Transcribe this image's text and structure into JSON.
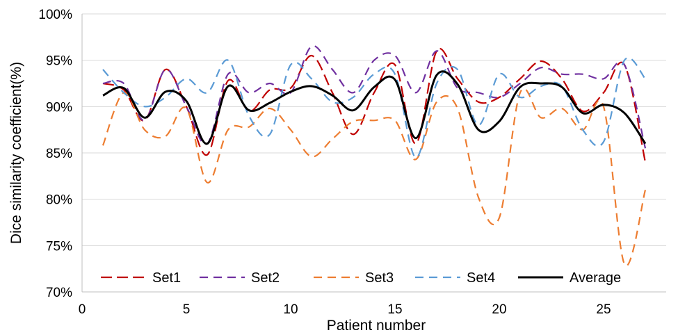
{
  "chart_data": {
    "type": "line",
    "title": "",
    "xlabel": "Patient number",
    "ylabel": "Dice similarity coefficient(%)",
    "xlim": [
      0,
      28
    ],
    "ylim": [
      70,
      100
    ],
    "x_ticks": [
      0,
      5,
      10,
      15,
      20,
      25
    ],
    "y_ticks": [
      70,
      75,
      80,
      85,
      90,
      95,
      100
    ],
    "y_tick_labels": [
      "70%",
      "75%",
      "80%",
      "85%",
      "90%",
      "95%",
      "100%"
    ],
    "grid": "horizontal",
    "legend_position": "bottom",
    "x": [
      1,
      2,
      3,
      4,
      5,
      6,
      7,
      8,
      9,
      10,
      11,
      12,
      13,
      14,
      15,
      16,
      17,
      18,
      19,
      20,
      21,
      22,
      23,
      24,
      25,
      26,
      27
    ],
    "series": [
      {
        "name": "Set1",
        "color": "#c00000",
        "dash": "long-dash",
        "values": [
          92.5,
          91.8,
          88.5,
          94.0,
          90.0,
          84.8,
          92.8,
          89.5,
          91.8,
          92.0,
          95.5,
          91.5,
          87.0,
          91.5,
          94.5,
          86.0,
          96.0,
          93.0,
          90.5,
          91.0,
          93.0,
          94.9,
          93.0,
          89.5,
          91.5,
          94.5,
          84.0
        ]
      },
      {
        "name": "Set2",
        "color": "#7030a0",
        "dash": "dash",
        "values": [
          92.5,
          92.5,
          88.5,
          94.0,
          90.0,
          86.0,
          93.5,
          91.5,
          92.5,
          91.5,
          96.5,
          94.0,
          91.5,
          95.0,
          95.5,
          91.5,
          96.0,
          92.0,
          91.5,
          91.0,
          92.5,
          94.2,
          93.5,
          93.5,
          93.0,
          94.5,
          85.5
        ]
      },
      {
        "name": "Set3",
        "color": "#ed7d31",
        "dash": "dash",
        "values": [
          85.8,
          91.5,
          87.5,
          86.8,
          89.8,
          81.8,
          87.5,
          87.8,
          89.8,
          87.5,
          84.6,
          86.5,
          88.4,
          88.5,
          88.5,
          84.3,
          90.5,
          89.8,
          80.2,
          78.0,
          91.5,
          88.8,
          89.8,
          87.5,
          90.0,
          73.0,
          81.0
        ]
      },
      {
        "name": "Set4",
        "color": "#5b9bd5",
        "dash": "dash",
        "values": [
          94.0,
          91.5,
          90.0,
          91.0,
          93.0,
          91.5,
          95.0,
          89.0,
          87.0,
          94.5,
          93.0,
          90.5,
          91.0,
          93.5,
          93.5,
          84.5,
          92.5,
          94.0,
          88.0,
          93.5,
          91.0,
          92.2,
          92.2,
          87.5,
          86.2,
          95.0,
          93.0
        ]
      },
      {
        "name": "Average",
        "color": "#000000",
        "dash": "solid",
        "values": [
          91.2,
          92.0,
          88.8,
          91.6,
          90.6,
          86.0,
          92.2,
          89.6,
          90.4,
          91.6,
          92.2,
          91.2,
          89.6,
          92.1,
          92.9,
          86.6,
          93.4,
          92.4,
          87.5,
          88.4,
          92.1,
          92.5,
          92.1,
          89.3,
          90.2,
          89.3,
          86.0
        ]
      }
    ]
  }
}
